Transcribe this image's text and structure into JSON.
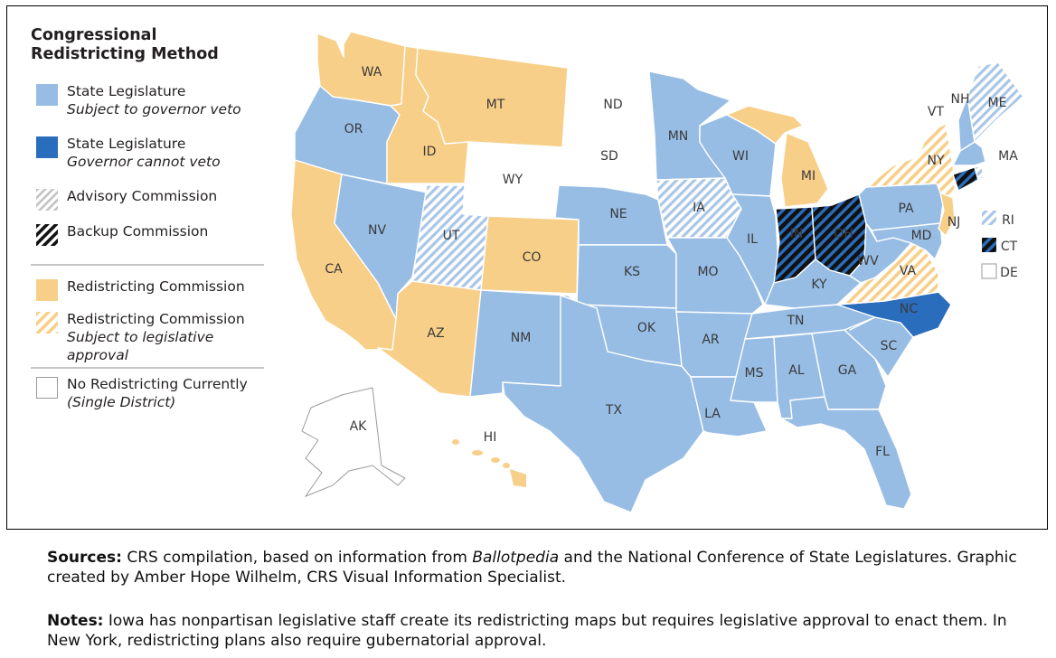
{
  "legend": {
    "title_line1": "Congressional",
    "title_line2": "Redistricting Method",
    "items": [
      {
        "label": "State Legislature",
        "sub": "Subject to governor veto",
        "pattern": "solid-light"
      },
      {
        "label": "State Legislature",
        "sub": "Governor cannot veto",
        "pattern": "solid-dark"
      },
      {
        "label": "Advisory Commission",
        "sub": "",
        "pattern": "hatch-gray"
      },
      {
        "label": "Backup Commission",
        "sub": "",
        "pattern": "hatch-black"
      },
      {
        "label": "Redistricting Commission",
        "sub": "",
        "pattern": "solid-yellow"
      },
      {
        "label": "Redistricting Commission",
        "sub": "Subject to legislative approval",
        "pattern": "hatch-yellow"
      },
      {
        "label": "No Redistricting Currently",
        "sub": "(Single District)",
        "pattern": "white"
      }
    ]
  },
  "colors": {
    "state_legislature": "#97bde5",
    "state_legislature_no_veto": "#2a6dbd",
    "redistricting_commission": "#f7cf88",
    "no_redistricting": "#ffffff",
    "backup_commission": "#111111",
    "advisory_hatch": "#c9d8ea"
  },
  "states": [
    {
      "abbr": "WA",
      "method": "Redistricting Commission"
    },
    {
      "abbr": "OR",
      "method": "State Legislature"
    },
    {
      "abbr": "CA",
      "method": "Redistricting Commission"
    },
    {
      "abbr": "ID",
      "method": "Redistricting Commission"
    },
    {
      "abbr": "NV",
      "method": "State Legislature"
    },
    {
      "abbr": "MT",
      "method": "Redistricting Commission"
    },
    {
      "abbr": "WY",
      "method": "No Redistricting Currently"
    },
    {
      "abbr": "UT",
      "method": "Advisory Commission"
    },
    {
      "abbr": "AZ",
      "method": "Redistricting Commission"
    },
    {
      "abbr": "CO",
      "method": "Redistricting Commission"
    },
    {
      "abbr": "NM",
      "method": "State Legislature"
    },
    {
      "abbr": "ND",
      "method": "No Redistricting Currently"
    },
    {
      "abbr": "SD",
      "method": "No Redistricting Currently"
    },
    {
      "abbr": "NE",
      "method": "State Legislature"
    },
    {
      "abbr": "KS",
      "method": "State Legislature"
    },
    {
      "abbr": "OK",
      "method": "State Legislature"
    },
    {
      "abbr": "TX",
      "method": "State Legislature"
    },
    {
      "abbr": "MN",
      "method": "State Legislature"
    },
    {
      "abbr": "IA",
      "method": "Advisory Commission"
    },
    {
      "abbr": "MO",
      "method": "State Legislature"
    },
    {
      "abbr": "AR",
      "method": "State Legislature"
    },
    {
      "abbr": "LA",
      "method": "State Legislature"
    },
    {
      "abbr": "WI",
      "method": "State Legislature"
    },
    {
      "abbr": "IL",
      "method": "State Legislature"
    },
    {
      "abbr": "MI",
      "method": "Redistricting Commission"
    },
    {
      "abbr": "IN",
      "method": "Backup Commission"
    },
    {
      "abbr": "OH",
      "method": "Backup Commission"
    },
    {
      "abbr": "KY",
      "method": "State Legislature"
    },
    {
      "abbr": "TN",
      "method": "State Legislature"
    },
    {
      "abbr": "MS",
      "method": "State Legislature"
    },
    {
      "abbr": "AL",
      "method": "State Legislature"
    },
    {
      "abbr": "GA",
      "method": "State Legislature"
    },
    {
      "abbr": "FL",
      "method": "State Legislature"
    },
    {
      "abbr": "SC",
      "method": "State Legislature"
    },
    {
      "abbr": "NC",
      "method": "State Legislature (Governor cannot veto)"
    },
    {
      "abbr": "VA",
      "method": "Redistricting Commission (Subject to legislative approval)"
    },
    {
      "abbr": "WV",
      "method": "State Legislature"
    },
    {
      "abbr": "PA",
      "method": "State Legislature"
    },
    {
      "abbr": "NY",
      "method": "Redistricting Commission (Subject to legislative approval)"
    },
    {
      "abbr": "NJ",
      "method": "Redistricting Commission"
    },
    {
      "abbr": "MD",
      "method": "State Legislature"
    },
    {
      "abbr": "VT",
      "method": "No Redistricting Currently"
    },
    {
      "abbr": "NH",
      "method": "State Legislature"
    },
    {
      "abbr": "ME",
      "method": "Advisory Commission"
    },
    {
      "abbr": "MA",
      "method": "State Legislature"
    },
    {
      "abbr": "AK",
      "method": "No Redistricting Currently"
    },
    {
      "abbr": "HI",
      "method": "Redistricting Commission"
    },
    {
      "abbr": "RI",
      "method": "Advisory Commission"
    },
    {
      "abbr": "CT",
      "method": "Backup Commission"
    },
    {
      "abbr": "DE",
      "method": "No Redistricting Currently"
    }
  ],
  "notes": {
    "sources_label": "Sources:",
    "sources_text_1": " CRS compilation, based on information from ",
    "sources_italic": "Ballotpedia",
    "sources_text_2": " and the National Conference of State Legislatures. Graphic created by Amber Hope Wilhelm, CRS Visual Information Specialist.",
    "notes_label": "Notes:",
    "notes_text": " Iowa has nonpartisan legislative staff create its redistricting maps but requires legislative approval to enact them. In New York, redistricting plans also require gubernatorial approval."
  }
}
